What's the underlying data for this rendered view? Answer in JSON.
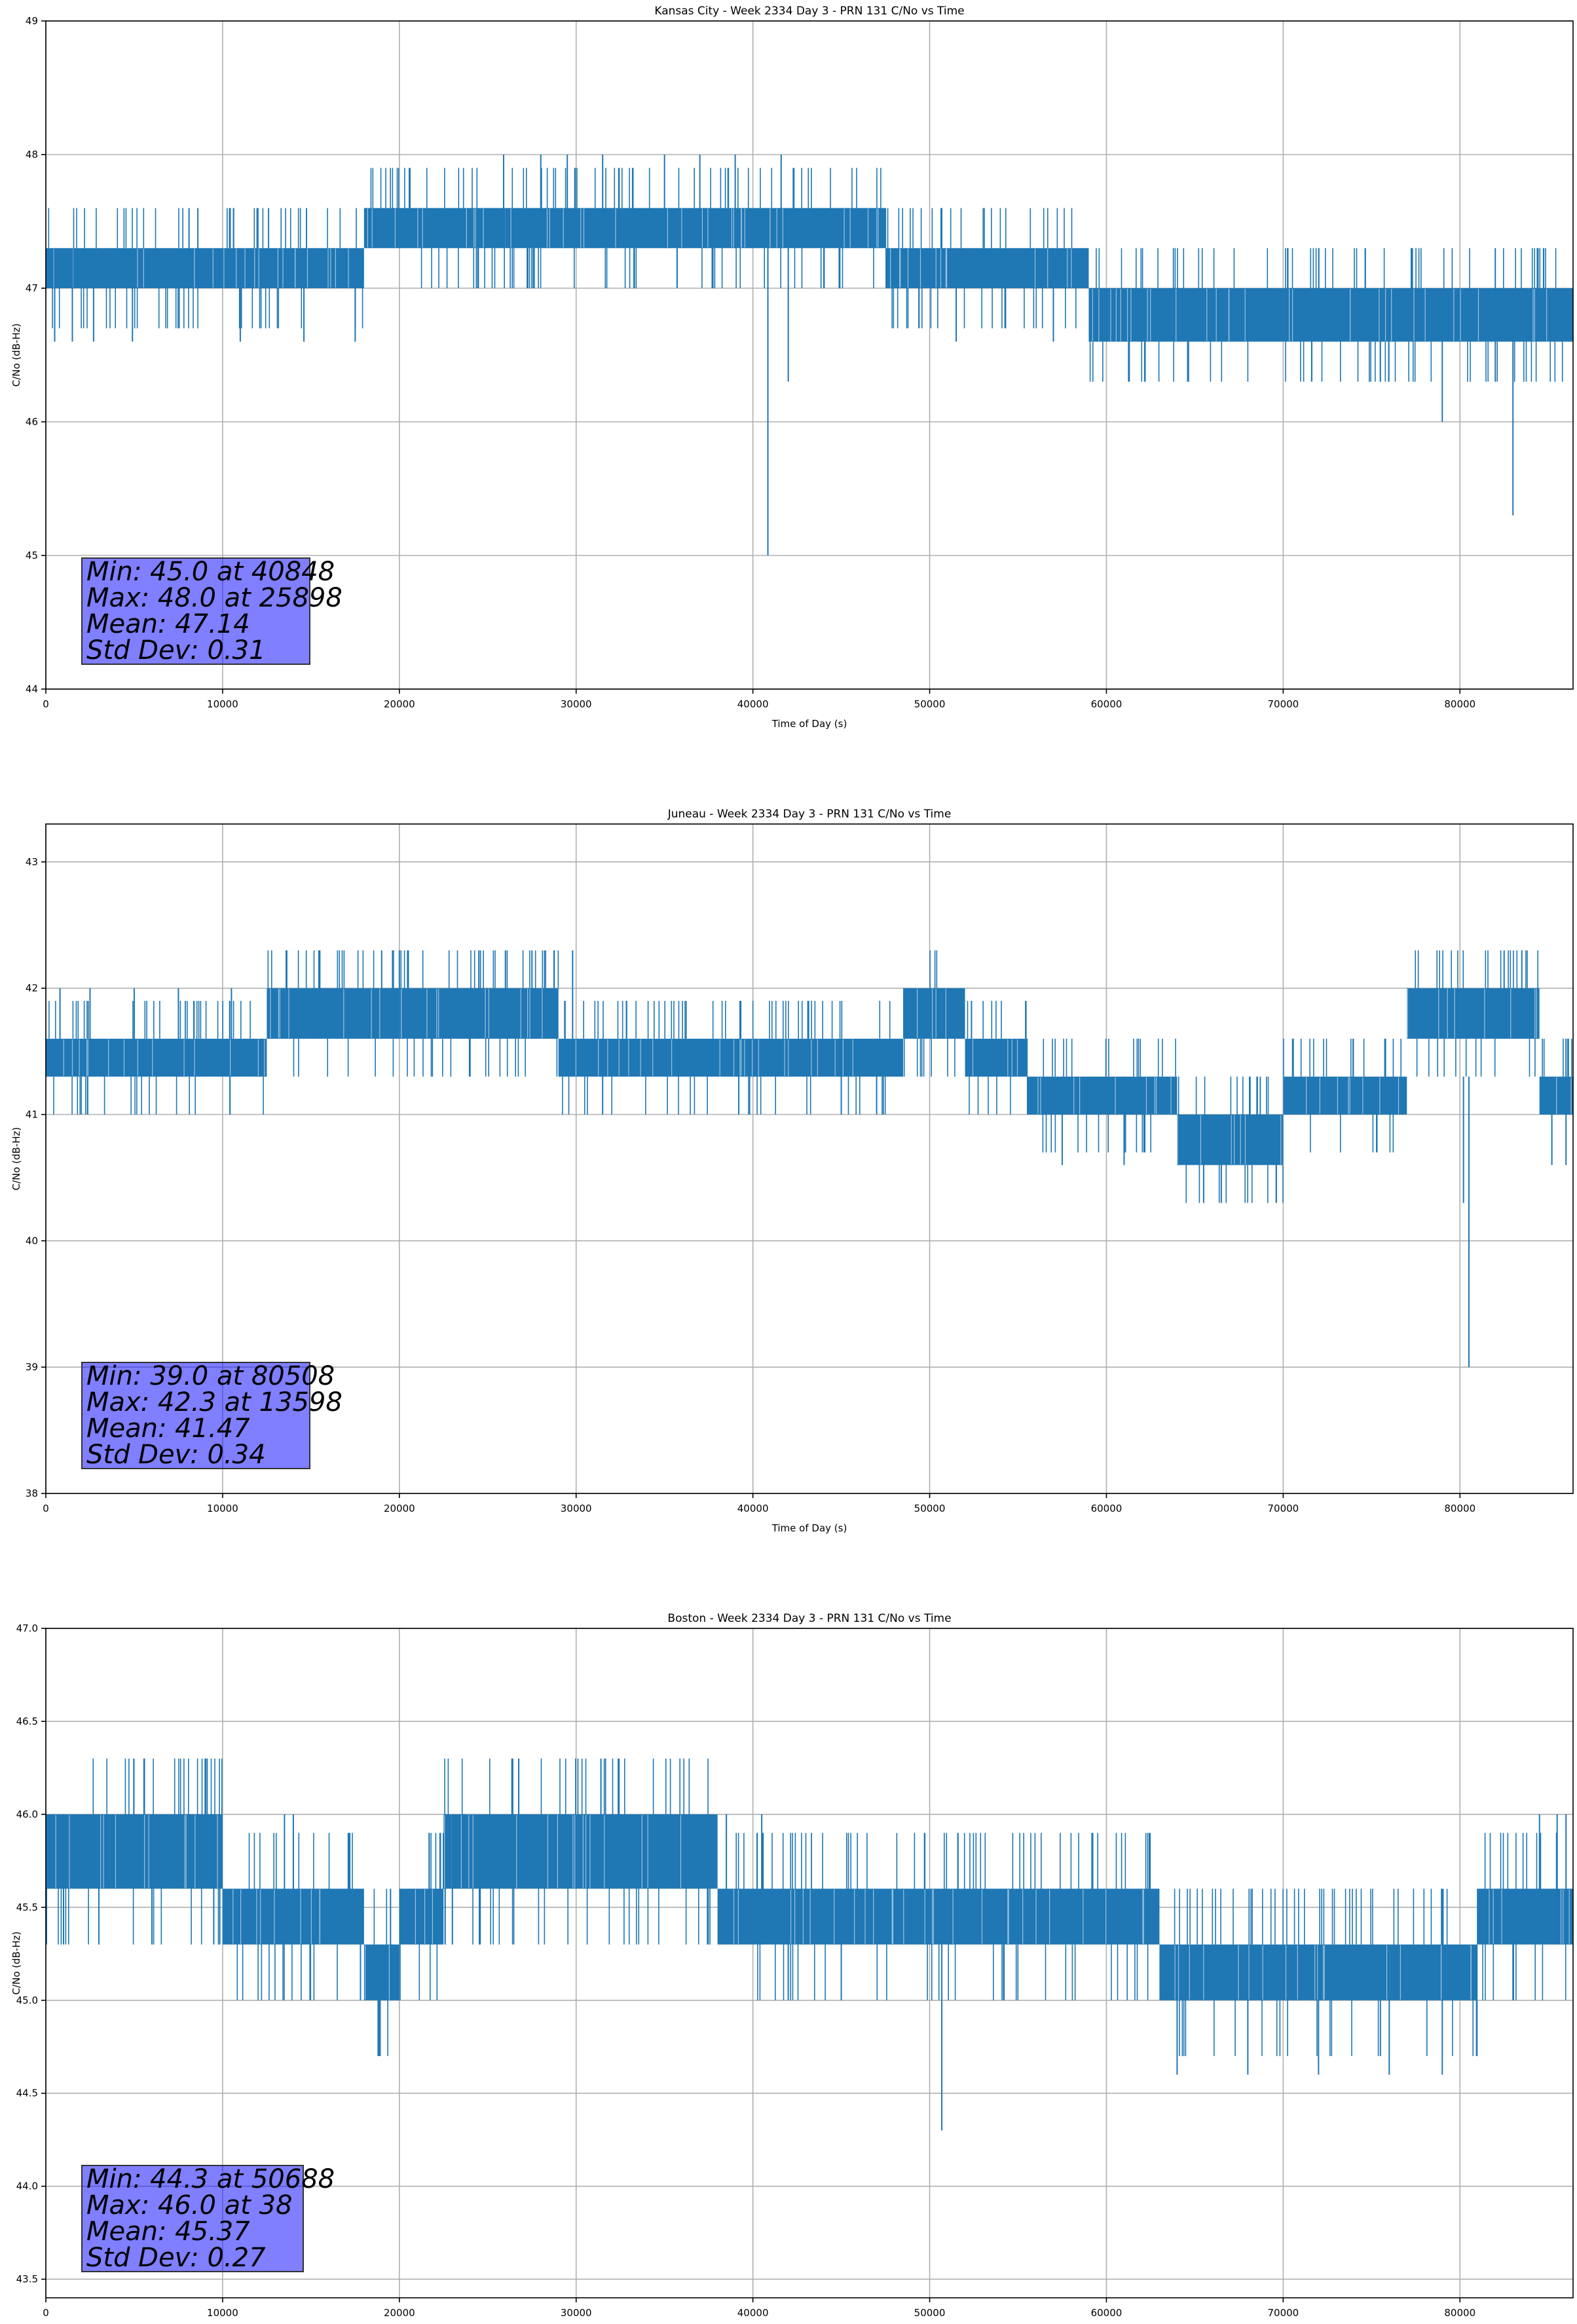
{
  "colors": {
    "series": "#1f77b4",
    "grid": "#b0b0b0",
    "stats_box": "#8080ff"
  },
  "chart_data": [
    {
      "type": "line",
      "title": "Kansas City - Week 2334 Day 3 - PRN 131 C/No vs Time",
      "xlabel": "Time of Day (s)",
      "ylabel": "C/No (dB-Hz)",
      "xlim": [
        0,
        86400
      ],
      "ylim": [
        44,
        49
      ],
      "xticks": [
        0,
        10000,
        20000,
        30000,
        40000,
        50000,
        60000,
        70000,
        80000
      ],
      "xtick_labels": [
        "0",
        "10000",
        "20000",
        "30000",
        "40000",
        "50000",
        "60000",
        "70000",
        "80000"
      ],
      "yticks": [
        44,
        45,
        46,
        47,
        48,
        49
      ],
      "ytick_labels": [
        "44",
        "45",
        "46",
        "47",
        "48",
        "49"
      ],
      "grid": true,
      "stats": [
        "Min: 45.0 at 40848",
        "Max: 48.0 at 25898",
        "Mean: 47.14",
        "Std Dev: 0.31"
      ],
      "segments": [
        {
          "x0": 0,
          "x1": 18000,
          "lo": 47.0,
          "hi": 47.3
        },
        {
          "x0": 18000,
          "x1": 26000,
          "lo": 47.3,
          "hi": 47.6
        },
        {
          "x0": 26000,
          "x1": 41000,
          "lo": 47.3,
          "hi": 47.6
        },
        {
          "x0": 41000,
          "x1": 47500,
          "lo": 47.3,
          "hi": 47.6
        },
        {
          "x0": 47500,
          "x1": 59000,
          "lo": 47.0,
          "hi": 47.3
        },
        {
          "x0": 59000,
          "x1": 86400,
          "lo": 46.6,
          "hi": 47.0
        }
      ],
      "spikes": [
        {
          "x": 500,
          "lo": 46.6,
          "hi": 47.3
        },
        {
          "x": 1500,
          "lo": 46.6,
          "hi": 47.3
        },
        {
          "x": 2700,
          "lo": 46.6,
          "hi": 47.3
        },
        {
          "x": 4900,
          "lo": 46.6,
          "hi": 47.0
        },
        {
          "x": 8100,
          "lo": 47.0,
          "hi": 47.6
        },
        {
          "x": 8600,
          "lo": 47.0,
          "hi": 47.6
        },
        {
          "x": 11000,
          "lo": 46.6,
          "hi": 47.0
        },
        {
          "x": 14600,
          "lo": 46.6,
          "hi": 47.3
        },
        {
          "x": 17500,
          "lo": 46.6,
          "hi": 47.3
        },
        {
          "x": 25898,
          "lo": 47.3,
          "hi": 48.0
        },
        {
          "x": 28000,
          "lo": 47.3,
          "hi": 48.0
        },
        {
          "x": 29500,
          "lo": 47.3,
          "hi": 48.0
        },
        {
          "x": 31500,
          "lo": 47.3,
          "hi": 48.0
        },
        {
          "x": 35000,
          "lo": 47.3,
          "hi": 48.0
        },
        {
          "x": 37000,
          "lo": 47.3,
          "hi": 48.0
        },
        {
          "x": 39000,
          "lo": 47.3,
          "hi": 48.0
        },
        {
          "x": 40848,
          "lo": 45.0,
          "hi": 47.3
        },
        {
          "x": 41600,
          "lo": 47.3,
          "hi": 48.0
        },
        {
          "x": 42000,
          "lo": 46.3,
          "hi": 47.3
        },
        {
          "x": 51500,
          "lo": 46.6,
          "hi": 47.3
        },
        {
          "x": 57000,
          "lo": 46.6,
          "hi": 47.3
        },
        {
          "x": 75500,
          "lo": 46.3,
          "hi": 47.0
        },
        {
          "x": 79000,
          "lo": 46.0,
          "hi": 47.0
        },
        {
          "x": 82000,
          "lo": 46.3,
          "hi": 47.3
        },
        {
          "x": 83000,
          "lo": 45.3,
          "hi": 47.0
        }
      ]
    },
    {
      "type": "line",
      "title": "Juneau - Week 2334 Day 3 - PRN 131 C/No vs Time",
      "xlabel": "Time of Day (s)",
      "ylabel": "C/No (dB-Hz)",
      "xlim": [
        0,
        86400
      ],
      "ylim": [
        38,
        43.3
      ],
      "xticks": [
        0,
        10000,
        20000,
        30000,
        40000,
        50000,
        60000,
        70000,
        80000
      ],
      "xtick_labels": [
        "0",
        "10000",
        "20000",
        "30000",
        "40000",
        "50000",
        "60000",
        "70000",
        "80000"
      ],
      "yticks": [
        38,
        39,
        40,
        41,
        42,
        43
      ],
      "ytick_labels": [
        "38",
        "39",
        "40",
        "41",
        "42",
        "43"
      ],
      "grid": true,
      "stats": [
        "Min: 39.0 at 80508",
        "Max: 42.3 at 13598",
        "Mean: 41.47",
        "Std Dev: 0.34"
      ],
      "segments": [
        {
          "x0": 0,
          "x1": 12500,
          "lo": 41.3,
          "hi": 41.6
        },
        {
          "x0": 12500,
          "x1": 29000,
          "lo": 41.6,
          "hi": 42.0
        },
        {
          "x0": 29000,
          "x1": 48500,
          "lo": 41.3,
          "hi": 41.6
        },
        {
          "x0": 48500,
          "x1": 52000,
          "lo": 41.6,
          "hi": 42.0
        },
        {
          "x0": 52000,
          "x1": 55500,
          "lo": 41.3,
          "hi": 41.6
        },
        {
          "x0": 55500,
          "x1": 64000,
          "lo": 41.0,
          "hi": 41.3
        },
        {
          "x0": 64000,
          "x1": 70000,
          "lo": 40.6,
          "hi": 41.0
        },
        {
          "x0": 70000,
          "x1": 77000,
          "lo": 41.0,
          "hi": 41.3
        },
        {
          "x0": 77000,
          "x1": 84500,
          "lo": 41.6,
          "hi": 42.0
        },
        {
          "x0": 84500,
          "x1": 86400,
          "lo": 41.0,
          "hi": 41.3
        }
      ],
      "spikes": [
        {
          "x": 800,
          "lo": 41.3,
          "hi": 42.0
        },
        {
          "x": 2500,
          "lo": 41.3,
          "hi": 42.0
        },
        {
          "x": 5000,
          "lo": 41.3,
          "hi": 42.0
        },
        {
          "x": 7500,
          "lo": 41.3,
          "hi": 42.0
        },
        {
          "x": 10500,
          "lo": 41.3,
          "hi": 42.0
        },
        {
          "x": 13598,
          "lo": 41.6,
          "hi": 42.3
        },
        {
          "x": 15500,
          "lo": 41.6,
          "hi": 42.3
        },
        {
          "x": 19000,
          "lo": 41.6,
          "hi": 42.3
        },
        {
          "x": 20000,
          "lo": 41.6,
          "hi": 42.3
        },
        {
          "x": 24000,
          "lo": 41.3,
          "hi": 42.0
        },
        {
          "x": 24500,
          "lo": 41.6,
          "hi": 42.3
        },
        {
          "x": 26000,
          "lo": 41.6,
          "hi": 42.3
        },
        {
          "x": 27500,
          "lo": 41.6,
          "hi": 42.3
        },
        {
          "x": 29800,
          "lo": 41.6,
          "hi": 42.3
        },
        {
          "x": 31500,
          "lo": 41.0,
          "hi": 41.6
        },
        {
          "x": 39200,
          "lo": 41.0,
          "hi": 41.6
        },
        {
          "x": 45000,
          "lo": 41.0,
          "hi": 41.6
        },
        {
          "x": 47000,
          "lo": 41.0,
          "hi": 41.6
        },
        {
          "x": 57500,
          "lo": 40.6,
          "hi": 41.3
        },
        {
          "x": 61000,
          "lo": 40.6,
          "hi": 41.3
        },
        {
          "x": 65500,
          "lo": 40.3,
          "hi": 41.0
        },
        {
          "x": 66500,
          "lo": 40.3,
          "hi": 41.0
        },
        {
          "x": 80200,
          "lo": 40.3,
          "hi": 41.3
        },
        {
          "x": 80508,
          "lo": 39.0,
          "hi": 41.3
        },
        {
          "x": 82500,
          "lo": 41.6,
          "hi": 42.3
        },
        {
          "x": 83500,
          "lo": 41.6,
          "hi": 42.3
        },
        {
          "x": 85200,
          "lo": 40.6,
          "hi": 41.3
        },
        {
          "x": 86000,
          "lo": 40.6,
          "hi": 41.6
        }
      ]
    },
    {
      "type": "line",
      "title": "Boston - Week 2334 Day 3 - PRN 131 C/No vs Time",
      "xlabel": "Time of Day (s)",
      "ylabel": "C/No (dB-Hz)",
      "xlim": [
        0,
        86400
      ],
      "ylim": [
        43.4,
        47.0
      ],
      "xticks": [
        0,
        10000,
        20000,
        30000,
        40000,
        50000,
        60000,
        70000,
        80000
      ],
      "xtick_labels": [
        "0",
        "10000",
        "20000",
        "30000",
        "40000",
        "50000",
        "60000",
        "70000",
        "80000"
      ],
      "yticks": [
        43.5,
        44.0,
        44.5,
        45.0,
        45.5,
        46.0,
        46.5,
        47.0
      ],
      "ytick_labels": [
        "43.5",
        "44.0",
        "44.5",
        "45.0",
        "45.5",
        "46.0",
        "46.5",
        "47.0"
      ],
      "grid": true,
      "stats": [
        "Min: 44.3 at 50688",
        "Max: 46.0 at 38",
        "Mean: 45.37",
        "Std Dev: 0.27"
      ],
      "segments": [
        {
          "x0": 0,
          "x1": 10000,
          "lo": 45.6,
          "hi": 46.0
        },
        {
          "x0": 10000,
          "x1": 18000,
          "lo": 45.3,
          "hi": 45.6
        },
        {
          "x0": 18000,
          "x1": 20000,
          "lo": 45.0,
          "hi": 45.3
        },
        {
          "x0": 20000,
          "x1": 22500,
          "lo": 45.3,
          "hi": 45.6
        },
        {
          "x0": 22500,
          "x1": 38000,
          "lo": 45.6,
          "hi": 46.0
        },
        {
          "x0": 38000,
          "x1": 63000,
          "lo": 45.3,
          "hi": 45.6
        },
        {
          "x0": 63000,
          "x1": 79000,
          "lo": 45.0,
          "hi": 45.3
        },
        {
          "x0": 79000,
          "x1": 81000,
          "lo": 45.0,
          "hi": 45.3
        },
        {
          "x0": 81000,
          "x1": 86400,
          "lo": 45.3,
          "hi": 45.6
        }
      ],
      "spikes": [
        {
          "x": 38,
          "lo": 45.3,
          "hi": 46.0
        },
        {
          "x": 1000,
          "lo": 45.3,
          "hi": 46.0
        },
        {
          "x": 3000,
          "lo": 45.3,
          "hi": 46.0
        },
        {
          "x": 6000,
          "lo": 45.3,
          "hi": 46.0
        },
        {
          "x": 9500,
          "lo": 45.3,
          "hi": 46.0
        },
        {
          "x": 13500,
          "lo": 45.3,
          "hi": 46.0
        },
        {
          "x": 14000,
          "lo": 45.3,
          "hi": 46.0
        },
        {
          "x": 17800,
          "lo": 45.0,
          "hi": 45.6
        },
        {
          "x": 19500,
          "lo": 45.0,
          "hi": 45.6
        },
        {
          "x": 23000,
          "lo": 45.3,
          "hi": 46.0
        },
        {
          "x": 38500,
          "lo": 45.3,
          "hi": 46.0
        },
        {
          "x": 40500,
          "lo": 45.3,
          "hi": 46.0
        },
        {
          "x": 42000,
          "lo": 45.0,
          "hi": 45.6
        },
        {
          "x": 45000,
          "lo": 45.0,
          "hi": 45.6
        },
        {
          "x": 50688,
          "lo": 44.3,
          "hi": 45.3
        },
        {
          "x": 64000,
          "lo": 44.6,
          "hi": 45.3
        },
        {
          "x": 68000,
          "lo": 44.6,
          "hi": 45.3
        },
        {
          "x": 72000,
          "lo": 44.6,
          "hi": 45.3
        },
        {
          "x": 76000,
          "lo": 44.6,
          "hi": 45.3
        },
        {
          "x": 79000,
          "lo": 44.6,
          "hi": 45.3
        },
        {
          "x": 83000,
          "lo": 45.0,
          "hi": 45.6
        },
        {
          "x": 84500,
          "lo": 45.3,
          "hi": 46.0
        },
        {
          "x": 85500,
          "lo": 45.3,
          "hi": 46.0
        },
        {
          "x": 86000,
          "lo": 45.3,
          "hi": 46.0
        }
      ]
    }
  ]
}
